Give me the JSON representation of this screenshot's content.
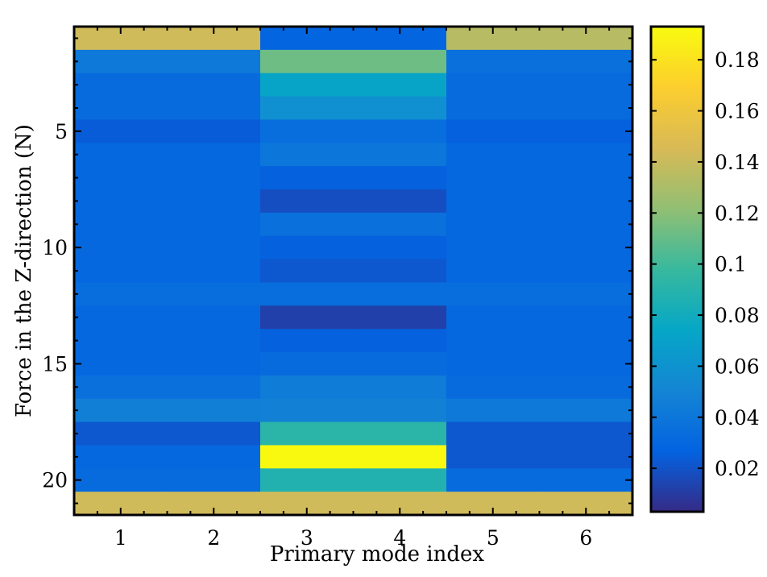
{
  "chart_data": {
    "type": "heatmap",
    "title": "",
    "xlabel": "Primary mode index",
    "ylabel": "Force in the Z-direction (N)",
    "x_categories": [
      1,
      2,
      3,
      4,
      5,
      6
    ],
    "y_rows": [
      1,
      2,
      3,
      4,
      5,
      6,
      7,
      8,
      9,
      10,
      11,
      12,
      13,
      14,
      15,
      16,
      17,
      18,
      19,
      20,
      21
    ],
    "xticks": [
      "1",
      "2",
      "3",
      "4",
      "5",
      "6"
    ],
    "yticks": [
      "5",
      "10",
      "15",
      "20"
    ],
    "ytick_values": [
      5,
      10,
      15,
      20
    ],
    "xlim": [
      0.5,
      6.5
    ],
    "ylim": [
      21.5,
      0.5
    ],
    "colorbar": {
      "range": [
        0.003,
        0.193
      ],
      "ticks": [
        0.02,
        0.04,
        0.06,
        0.08,
        0.1,
        0.12,
        0.14,
        0.16,
        0.18
      ],
      "tick_labels": [
        "0.02",
        "0.04",
        "0.06",
        "0.08",
        "0.1",
        "0.12",
        "0.14",
        "0.16",
        "0.18"
      ],
      "colormap": "parula",
      "colormap_stops": [
        "#352a87",
        "#0363e1",
        "#1485d4",
        "#06a7c6",
        "#38b99e",
        "#92bf73",
        "#d9ba56",
        "#fcce2e",
        "#f9fb0e"
      ]
    },
    "values": [
      [
        0.142,
        0.142,
        0.028,
        0.028,
        0.134,
        0.134
      ],
      [
        0.042,
        0.042,
        0.112,
        0.112,
        0.036,
        0.036
      ],
      [
        0.032,
        0.032,
        0.072,
        0.072,
        0.032,
        0.032
      ],
      [
        0.032,
        0.032,
        0.058,
        0.058,
        0.032,
        0.032
      ],
      [
        0.024,
        0.024,
        0.034,
        0.034,
        0.026,
        0.026
      ],
      [
        0.03,
        0.03,
        0.04,
        0.04,
        0.03,
        0.03
      ],
      [
        0.03,
        0.03,
        0.026,
        0.026,
        0.03,
        0.03
      ],
      [
        0.03,
        0.03,
        0.018,
        0.018,
        0.03,
        0.03
      ],
      [
        0.03,
        0.03,
        0.036,
        0.036,
        0.03,
        0.03
      ],
      [
        0.03,
        0.03,
        0.026,
        0.026,
        0.03,
        0.03
      ],
      [
        0.03,
        0.03,
        0.022,
        0.022,
        0.03,
        0.03
      ],
      [
        0.034,
        0.034,
        0.034,
        0.034,
        0.034,
        0.034
      ],
      [
        0.03,
        0.03,
        0.012,
        0.012,
        0.03,
        0.03
      ],
      [
        0.03,
        0.03,
        0.026,
        0.026,
        0.03,
        0.03
      ],
      [
        0.03,
        0.03,
        0.032,
        0.032,
        0.03,
        0.03
      ],
      [
        0.036,
        0.036,
        0.044,
        0.044,
        0.032,
        0.032
      ],
      [
        0.046,
        0.046,
        0.048,
        0.048,
        0.042,
        0.042
      ],
      [
        0.022,
        0.022,
        0.092,
        0.092,
        0.022,
        0.022
      ],
      [
        0.03,
        0.03,
        0.192,
        0.192,
        0.022,
        0.022
      ],
      [
        0.032,
        0.032,
        0.088,
        0.088,
        0.032,
        0.032
      ],
      [
        0.142,
        0.142,
        0.142,
        0.142,
        0.142,
        0.142
      ]
    ]
  }
}
